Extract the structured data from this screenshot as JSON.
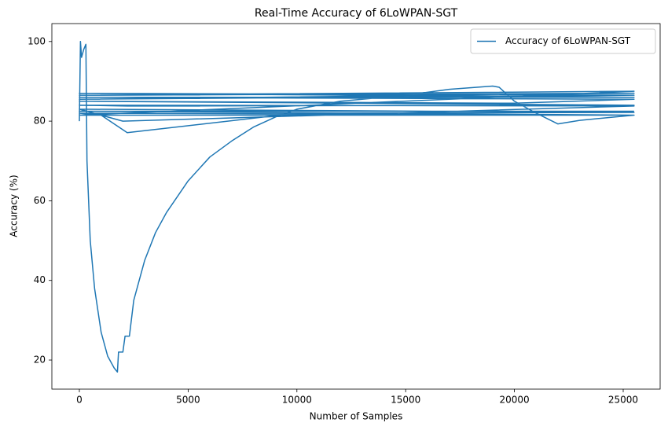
{
  "chart_data": {
    "type": "line",
    "title": "Real-Time Accuracy of 6LoWPAN-SGT",
    "x_label": "Number of Samples",
    "y_label": "Accuracy (%)",
    "x": [
      0,
      50,
      100,
      200,
      300,
      350,
      500,
      700,
      1000,
      1300,
      1600,
      1750,
      1800,
      2000,
      2100,
      2300,
      2500,
      3000,
      3500,
      4000,
      5000,
      6000,
      7000,
      8000,
      9000,
      10000,
      12000,
      15000,
      17000,
      19000,
      19300,
      20000,
      21000,
      22000,
      23000,
      25500,
      0,
      1000,
      2200,
      10000,
      25500,
      0,
      2000,
      25500,
      0,
      2200,
      25500,
      0,
      20000,
      25500,
      0,
      25500,
      0,
      25500,
      0,
      25500,
      0,
      25500,
      0,
      25500,
      0,
      25500
    ],
    "series": [
      {
        "name": "Accuracy of 6LoWPAN-SGT",
        "color": "#1f77b4",
        "values": [
          80,
          100,
          96,
          98,
          99.3,
          70,
          50,
          38,
          27,
          21,
          18,
          17,
          22,
          22,
          26,
          26,
          35,
          45,
          52,
          57,
          65,
          71,
          75,
          78.5,
          81,
          83,
          85,
          86.5,
          88,
          88.8,
          88.5,
          85,
          82,
          79.3,
          80.2,
          81.5,
          82,
          81.5,
          77.1,
          82,
          82.2,
          83,
          80,
          83.8,
          84,
          83.8,
          84,
          85,
          84.5,
          85.5,
          86,
          86,
          87,
          86.5,
          85.5,
          87,
          86.5,
          87.5,
          81.5,
          81.5,
          82.5,
          82.5
        ]
      }
    ],
    "xlim": [
      -1264,
      26698
    ],
    "ylim": [
      12.7,
      104.5
    ],
    "xticks": [
      0,
      5000,
      10000,
      15000,
      20000,
      25000
    ],
    "yticks": [
      20,
      40,
      60,
      80,
      100
    ],
    "grid": false,
    "legend": "upper right"
  }
}
